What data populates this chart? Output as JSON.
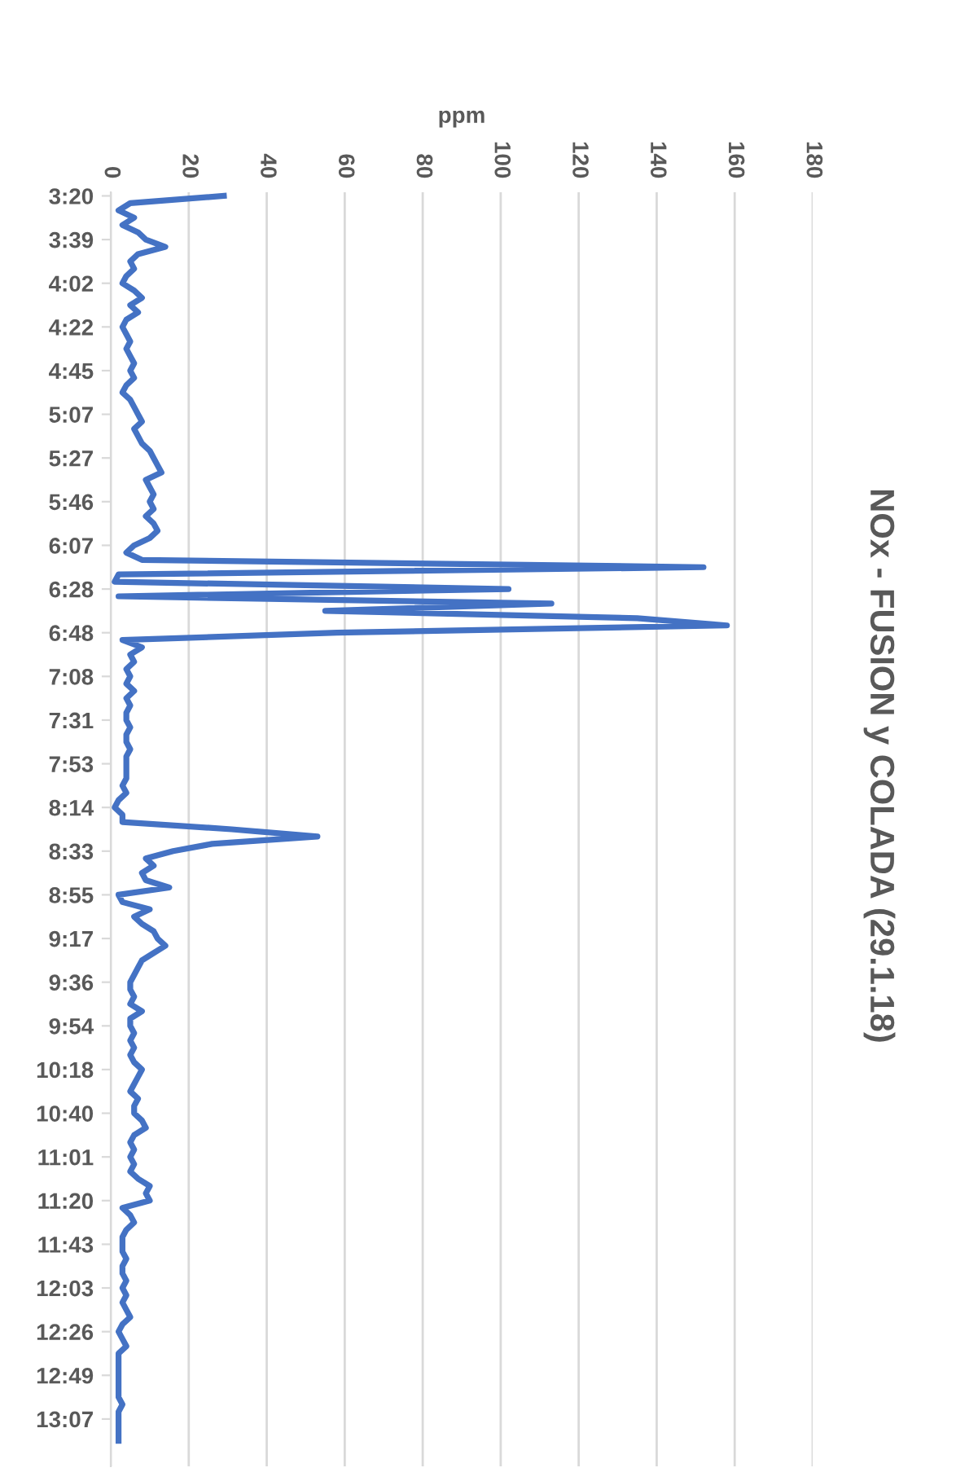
{
  "chart_data": {
    "type": "line",
    "orientation": "horizontal",
    "title": "NOx - FUSION y COLADA (29.1.18)",
    "xlabel": "ppm",
    "categories": [
      "3:20",
      null,
      null,
      null,
      null,
      null,
      "3:39",
      null,
      null,
      null,
      null,
      null,
      "4:02",
      null,
      null,
      null,
      null,
      null,
      "4:22",
      null,
      null,
      null,
      null,
      null,
      "4:45",
      null,
      null,
      null,
      null,
      null,
      "5:07",
      null,
      null,
      null,
      null,
      null,
      "5:27",
      null,
      null,
      null,
      null,
      null,
      "5:46",
      null,
      null,
      null,
      null,
      null,
      "6:07",
      null,
      null,
      null,
      null,
      null,
      "6:28",
      null,
      null,
      null,
      null,
      null,
      "6:48",
      null,
      null,
      null,
      null,
      null,
      "7:08",
      null,
      null,
      null,
      null,
      null,
      "7:31",
      null,
      null,
      null,
      null,
      null,
      "7:53",
      null,
      null,
      null,
      null,
      null,
      "8:14",
      null,
      null,
      null,
      null,
      null,
      "8:33",
      null,
      null,
      null,
      null,
      null,
      "8:55",
      null,
      null,
      null,
      null,
      null,
      "9:17",
      null,
      null,
      null,
      null,
      null,
      "9:36",
      null,
      null,
      null,
      null,
      null,
      "9:54",
      null,
      null,
      null,
      null,
      null,
      "10:18",
      null,
      null,
      null,
      null,
      null,
      "10:40",
      null,
      null,
      null,
      null,
      null,
      "11:01",
      null,
      null,
      null,
      null,
      null,
      "11:20",
      null,
      null,
      null,
      null,
      null,
      "11:43",
      null,
      null,
      null,
      null,
      null,
      "12:03",
      null,
      null,
      null,
      null,
      null,
      "12:26",
      null,
      null,
      null,
      null,
      null,
      "12:49",
      null,
      null,
      null,
      null,
      null,
      "13:07",
      null,
      null,
      null
    ],
    "series": [
      {
        "color": "#4472c4",
        "values": [
          29,
          5,
          2,
          6,
          3,
          7,
          9,
          14,
          7,
          5,
          6,
          4,
          3,
          6,
          8,
          5,
          7,
          4,
          3,
          4,
          5,
          4,
          5,
          6,
          5,
          6,
          4,
          3,
          5,
          6,
          7,
          8,
          6,
          7,
          8,
          10,
          11,
          12,
          13,
          9,
          10,
          11,
          10,
          11,
          9,
          11,
          12,
          10,
          6,
          4,
          8,
          152,
          2,
          1,
          102,
          2,
          113,
          55,
          135,
          158,
          58,
          3,
          8,
          5,
          6,
          4,
          5,
          4,
          6,
          4,
          5,
          4,
          4,
          5,
          4,
          4,
          5,
          4,
          4,
          4,
          4,
          3,
          4,
          2,
          1,
          3,
          3,
          31,
          53,
          26,
          16,
          9,
          11,
          8,
          9,
          15,
          2,
          3,
          10,
          6,
          8,
          11,
          12,
          14,
          11,
          8,
          7,
          6,
          5,
          5,
          6,
          5,
          8,
          5,
          5,
          6,
          5,
          6,
          5,
          6,
          8,
          7,
          6,
          5,
          7,
          6,
          6,
          8,
          9,
          6,
          5,
          6,
          5,
          6,
          5,
          7,
          10,
          9,
          10,
          3,
          5,
          6,
          4,
          3,
          3,
          3,
          4,
          3,
          3,
          4,
          3,
          4,
          3,
          4,
          5,
          3,
          2,
          3,
          4,
          2,
          2,
          2,
          2,
          2,
          2,
          2,
          3,
          2,
          2,
          2,
          2,
          2
        ]
      }
    ],
    "xlim": [
      0,
      180
    ],
    "xticks": [
      0,
      20,
      40,
      60,
      80,
      100,
      120,
      140,
      160,
      180
    ],
    "grid": "x",
    "line_style": "solid",
    "marker": "none"
  }
}
